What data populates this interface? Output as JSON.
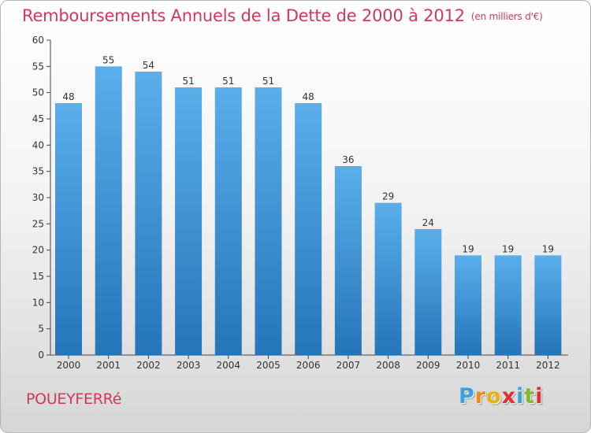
{
  "chart_data": {
    "type": "bar",
    "title": "Remboursements Annuels de la Dette de 2000 à 2012",
    "subtitle": "(en milliers d'€)",
    "categories": [
      "2000",
      "2001",
      "2002",
      "2003",
      "2004",
      "2005",
      "2006",
      "2007",
      "2008",
      "2009",
      "2010",
      "2011",
      "2012"
    ],
    "values": [
      48,
      55,
      54,
      51,
      51,
      51,
      48,
      36,
      29,
      24,
      19,
      19,
      19
    ],
    "ylim": [
      0,
      60
    ],
    "yticks": [
      0,
      5,
      10,
      15,
      20,
      25,
      30,
      35,
      40,
      45,
      50,
      55,
      60
    ],
    "xlabel": "",
    "ylabel": "",
    "grid": false,
    "bar_color_top": "#5aaeea",
    "bar_color_bottom": "#2575b9"
  },
  "footer": {
    "commune": "POUEYFERRé",
    "logo_letters": [
      "P",
      "r",
      "o",
      "x",
      "i",
      "t",
      "i"
    ],
    "logo_colors": [
      "#3aa0e0",
      "#f08a10",
      "#e8b40c",
      "#e0302c",
      "#3aa0e0",
      "#82b832",
      "#e0302c"
    ]
  }
}
